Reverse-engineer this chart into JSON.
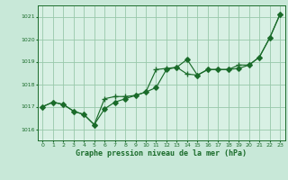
{
  "background_color": "#c8e8d8",
  "plot_bg_color": "#d8f0e4",
  "grid_color": "#98c8aa",
  "line_color": "#1a6b2a",
  "xlabel": "Graphe pression niveau de la mer (hPa)",
  "xlim": [
    -0.5,
    23.5
  ],
  "ylim": [
    1015.5,
    1021.5
  ],
  "yticks": [
    1016,
    1017,
    1018,
    1019,
    1020,
    1021
  ],
  "xticks": [
    0,
    1,
    2,
    3,
    4,
    5,
    6,
    7,
    8,
    9,
    10,
    11,
    12,
    13,
    14,
    15,
    16,
    17,
    18,
    19,
    20,
    21,
    22,
    23
  ],
  "series1_x": [
    0,
    1,
    2,
    3,
    4,
    5,
    6,
    7,
    8,
    9,
    10,
    11,
    12,
    13,
    14,
    15,
    16,
    17,
    18,
    19,
    20,
    21,
    22,
    23
  ],
  "series1_y": [
    1017.0,
    1017.2,
    1017.1,
    1016.8,
    1016.65,
    1016.2,
    1016.9,
    1017.2,
    1017.35,
    1017.5,
    1017.65,
    1017.85,
    1018.65,
    1018.75,
    1019.1,
    1018.4,
    1018.65,
    1018.65,
    1018.65,
    1018.7,
    1018.85,
    1019.2,
    1020.05,
    1021.1
  ],
  "series2_x": [
    0,
    1,
    2,
    3,
    4,
    5,
    6,
    7,
    8,
    9,
    10,
    11,
    12,
    13,
    14,
    15,
    16,
    17,
    18,
    19,
    20,
    21,
    22,
    23
  ],
  "series2_y": [
    1017.0,
    1017.2,
    1017.1,
    1016.8,
    1016.65,
    1016.2,
    1017.35,
    1017.45,
    1017.45,
    1017.5,
    1017.65,
    1018.65,
    1018.7,
    1018.75,
    1018.45,
    1018.4,
    1018.65,
    1018.65,
    1018.65,
    1018.85,
    1018.85,
    1019.2,
    1020.05,
    1021.1
  ]
}
